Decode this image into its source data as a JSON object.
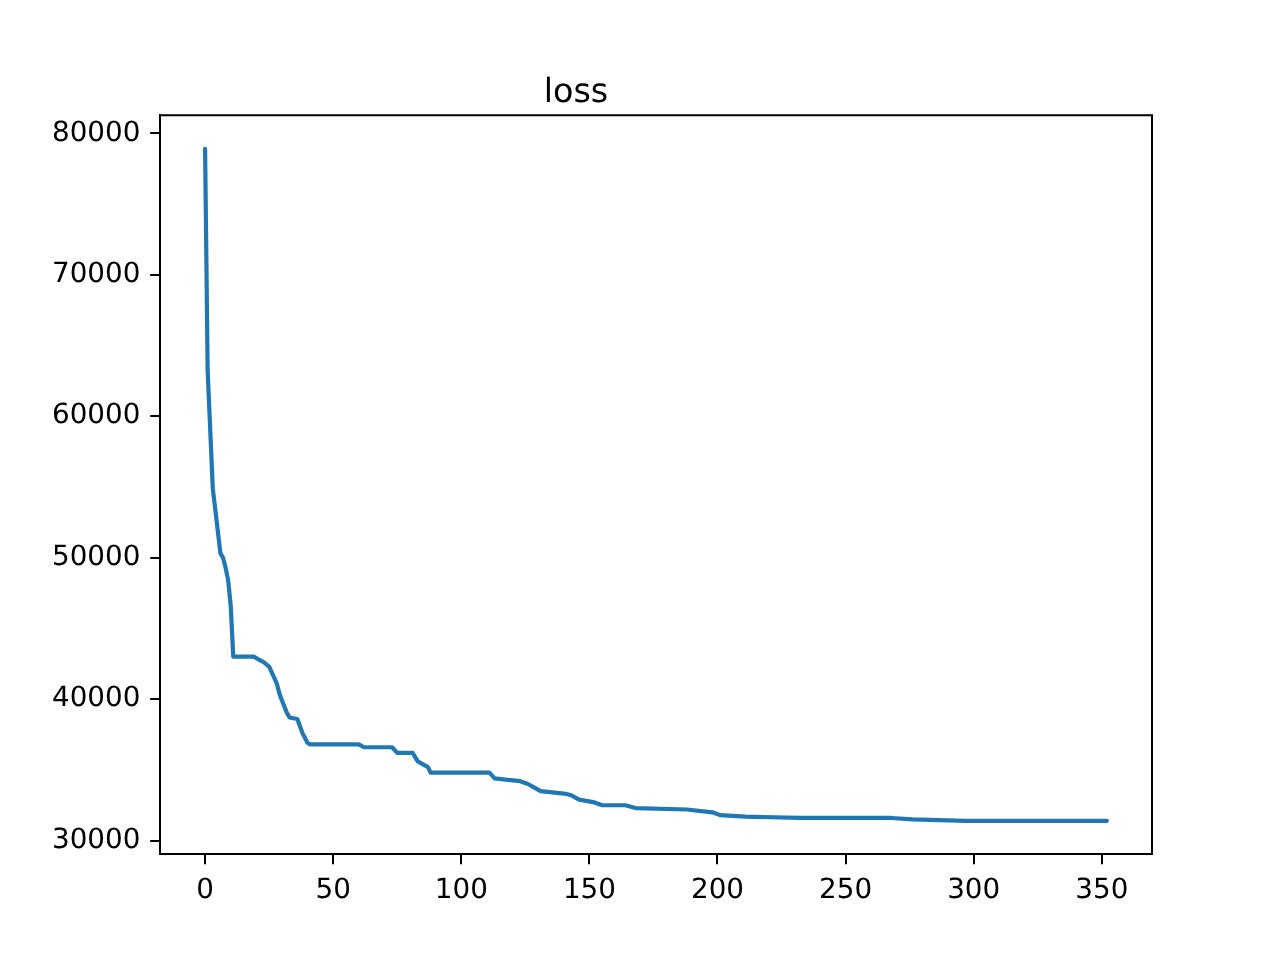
{
  "chart_data": {
    "type": "line",
    "title": "loss",
    "x": [
      0,
      1,
      3,
      6,
      7,
      8,
      9,
      10,
      11,
      19,
      21,
      23,
      25,
      27,
      28,
      29,
      30,
      32,
      33,
      36,
      37,
      38,
      40,
      41,
      60,
      62,
      73,
      75,
      81,
      83,
      87,
      88,
      111,
      113,
      123,
      126,
      128,
      131,
      141,
      143,
      146,
      152,
      155,
      164,
      168,
      188,
      198,
      201,
      211,
      232,
      268,
      276,
      297,
      352
    ],
    "values": [
      78900,
      63200,
      54900,
      50300,
      50000,
      49300,
      48400,
      46600,
      43000,
      43000,
      42800,
      42600,
      42300,
      41500,
      41100,
      40400,
      39900,
      39000,
      38700,
      38600,
      38100,
      37600,
      36900,
      36800,
      36800,
      36600,
      36600,
      36200,
      36200,
      35600,
      35200,
      34800,
      34800,
      34400,
      34200,
      34000,
      33800,
      33500,
      33300,
      33200,
      32900,
      32700,
      32500,
      32500,
      32300,
      32200,
      32000,
      31800,
      31700,
      31600,
      31600,
      31500,
      31400,
      31400
    ],
    "color": "#1f77b4",
    "line_style": "solid",
    "xlim": [
      -17.6,
      369.6
    ],
    "ylim": [
      29025,
      81275
    ],
    "xticks": [
      0,
      50,
      100,
      150,
      200,
      250,
      300,
      350
    ],
    "yticks": [
      30000,
      40000,
      50000,
      60000,
      70000,
      80000
    ]
  }
}
